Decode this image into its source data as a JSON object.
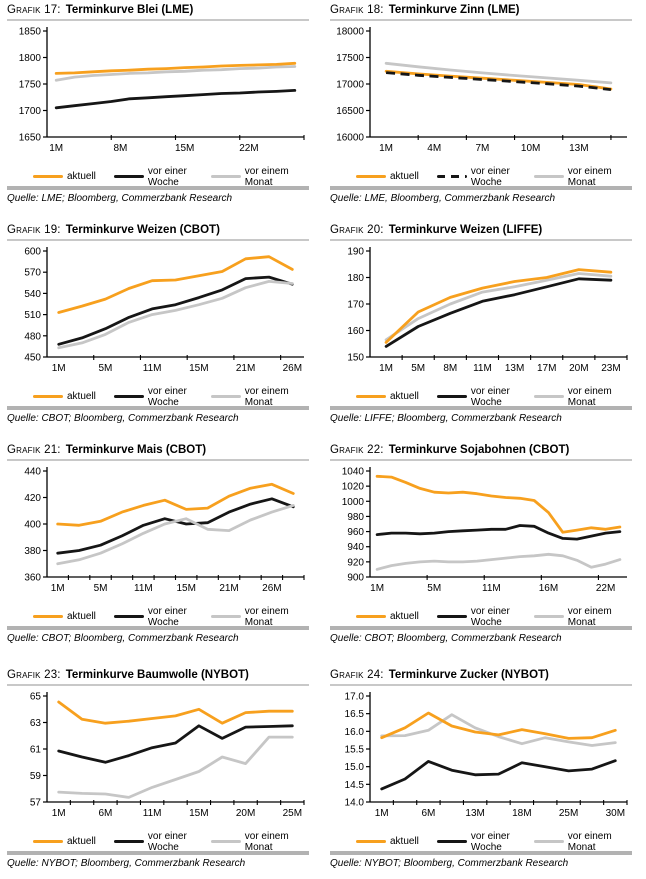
{
  "page": {
    "background": "#ffffff"
  },
  "colors": {
    "aktuell": "#F7A01E",
    "woche": "#161616",
    "monat": "#C6C6C6",
    "axis": "#000000"
  },
  "legend": {
    "aktuell": "aktuell",
    "woche": "vor einer Woche",
    "monat": "vor einem Monat"
  },
  "chart_data": [
    {
      "id": 17,
      "label": "Grafik 17:",
      "title": "Terminkurve Blei (LME)",
      "type": "line",
      "source": "Quelle: LME; Bloomberg, Commerzbank Research",
      "ylim": [
        1650,
        1850
      ],
      "y_ticks": [
        "1650",
        "1700",
        "1750",
        "1800",
        "1850"
      ],
      "n": 14,
      "tick_interval": 3.5,
      "x_labels": [
        {
          "idx": 0,
          "text": "1M"
        },
        {
          "idx": 3.5,
          "text": "8M"
        },
        {
          "idx": 7,
          "text": "15M"
        },
        {
          "idx": 10.5,
          "text": "22M"
        }
      ],
      "draw_order": [
        "monat",
        "woche",
        "aktuell"
      ],
      "series": [
        {
          "key": "aktuell",
          "dash": false,
          "values": [
            1770,
            1771,
            1773,
            1775,
            1776,
            1778,
            1779,
            1781,
            1782,
            1784,
            1785,
            1786,
            1787,
            1789
          ]
        },
        {
          "key": "woche",
          "dash": false,
          "values": [
            1705,
            1709,
            1713,
            1717,
            1722,
            1724,
            1726,
            1728,
            1730,
            1732,
            1733,
            1735,
            1736,
            1738
          ]
        },
        {
          "key": "monat",
          "dash": false,
          "values": [
            1757,
            1763,
            1766,
            1768,
            1770,
            1771,
            1773,
            1774,
            1776,
            1777,
            1779,
            1780,
            1782,
            1783
          ]
        }
      ]
    },
    {
      "id": 18,
      "label": "Grafik 18:",
      "title": "Terminkurve Zinn (LME)",
      "type": "line",
      "source": "Quelle: LME, Bloomberg, Commerzbank Research",
      "ylim": [
        16000,
        18000
      ],
      "y_ticks": [
        "16000",
        "16500",
        "17000",
        "17500",
        "18000"
      ],
      "n": 8,
      "tick_interval": 1.5,
      "x_labels": [
        {
          "idx": 0,
          "text": "1M"
        },
        {
          "idx": 1.5,
          "text": "4M"
        },
        {
          "idx": 3,
          "text": "7M"
        },
        {
          "idx": 4.5,
          "text": "10M"
        },
        {
          "idx": 6,
          "text": "13M"
        }
      ],
      "draw_order": [
        "monat",
        "aktuell",
        "woche"
      ],
      "series": [
        {
          "key": "aktuell",
          "dash": false,
          "values": [
            17240,
            17190,
            17150,
            17110,
            17070,
            17030,
            16990,
            16905
          ]
        },
        {
          "key": "woche",
          "dash": true,
          "values": [
            17215,
            17165,
            17125,
            17085,
            17045,
            17005,
            16960,
            16895
          ]
        },
        {
          "key": "monat",
          "dash": false,
          "values": [
            17390,
            17325,
            17265,
            17210,
            17160,
            17115,
            17070,
            17020
          ]
        }
      ]
    },
    {
      "id": 19,
      "label": "Grafik 19:",
      "title": "Terminkurve Weizen (CBOT)",
      "type": "line",
      "source": "Quelle: CBOT; Bloomberg, Commerzbank Research",
      "ylim": [
        450,
        600
      ],
      "y_ticks": [
        "450",
        "480",
        "510",
        "540",
        "570",
        "600"
      ],
      "n": 11,
      "tick_interval": 2,
      "x_labels": [
        {
          "idx": 0,
          "text": "1M"
        },
        {
          "idx": 2,
          "text": "5M"
        },
        {
          "idx": 4,
          "text": "11M"
        },
        {
          "idx": 6,
          "text": "15M"
        },
        {
          "idx": 8,
          "text": "21M"
        },
        {
          "idx": 10,
          "text": "26M"
        }
      ],
      "draw_order": [
        "woche",
        "monat",
        "aktuell"
      ],
      "series": [
        {
          "key": "aktuell",
          "dash": false,
          "values": [
            513,
            522,
            532,
            547,
            558,
            559,
            565,
            571,
            589,
            592,
            574
          ]
        },
        {
          "key": "woche",
          "dash": false,
          "values": [
            468,
            477,
            490,
            506,
            518,
            524,
            534,
            545,
            561,
            563,
            553
          ]
        },
        {
          "key": "monat",
          "dash": false,
          "values": [
            463,
            470,
            482,
            499,
            510,
            516,
            524,
            533,
            548,
            557,
            554
          ]
        }
      ]
    },
    {
      "id": 20,
      "label": "Grafik 20:",
      "title": "Terminkurve Weizen (LIFFE)",
      "type": "line",
      "source": "Quelle: LIFFE; Bloomberg, Commerzbank Research",
      "ylim": [
        150,
        190
      ],
      "y_ticks": [
        "150",
        "160",
        "170",
        "180",
        "190"
      ],
      "n": 8,
      "tick_interval": 1,
      "x_labels": [
        {
          "idx": 0,
          "text": "1M"
        },
        {
          "idx": 1,
          "text": "5M"
        },
        {
          "idx": 2,
          "text": "8M"
        },
        {
          "idx": 3,
          "text": "11M"
        },
        {
          "idx": 4,
          "text": "13M"
        },
        {
          "idx": 5,
          "text": "17M"
        },
        {
          "idx": 6,
          "text": "20M"
        },
        {
          "idx": 7,
          "text": "23M"
        }
      ],
      "draw_order": [
        "monat",
        "woche",
        "aktuell"
      ],
      "series": [
        {
          "key": "aktuell",
          "dash": false,
          "values": [
            155.5,
            167,
            172.5,
            176,
            178.5,
            180,
            183,
            182
          ]
        },
        {
          "key": "woche",
          "dash": false,
          "values": [
            154,
            161.5,
            166.5,
            171,
            173.5,
            176.5,
            179.5,
            179
          ]
        },
        {
          "key": "monat",
          "dash": false,
          "values": [
            156.5,
            164.5,
            170,
            174.5,
            176.5,
            179,
            181.5,
            180.5
          ]
        }
      ]
    },
    {
      "id": 21,
      "label": "Grafik 21:",
      "title": "Terminkurve Mais (CBOT)",
      "type": "line",
      "source": "Quelle: CBOT; Bloomberg, Commerzbank Research",
      "ylim": [
        360,
        440
      ],
      "y_ticks": [
        "360",
        "380",
        "400",
        "420",
        "440"
      ],
      "n": 12,
      "tick_interval": 1,
      "x_labels": [
        {
          "idx": 0,
          "text": "1M"
        },
        {
          "idx": 2,
          "text": "5M"
        },
        {
          "idx": 4,
          "text": "11M"
        },
        {
          "idx": 6,
          "text": "15M"
        },
        {
          "idx": 8,
          "text": "21M"
        },
        {
          "idx": 10,
          "text": "26M"
        }
      ],
      "draw_order": [
        "woche",
        "monat",
        "aktuell"
      ],
      "series": [
        {
          "key": "aktuell",
          "dash": false,
          "values": [
            400,
            399,
            402,
            409,
            414,
            418,
            411,
            412,
            421,
            427,
            430,
            423
          ]
        },
        {
          "key": "woche",
          "dash": false,
          "values": [
            378,
            380,
            384,
            391,
            399,
            404,
            400,
            401,
            409,
            415,
            419,
            413
          ]
        },
        {
          "key": "monat",
          "dash": false,
          "values": [
            370,
            373,
            378,
            385,
            393,
            400,
            404,
            396,
            395,
            403,
            409,
            414
          ]
        }
      ]
    },
    {
      "id": 22,
      "label": "Grafik 22:",
      "title": "Terminkurve Sojabohnen (CBOT)",
      "type": "line",
      "source": "Quelle: CBOT; Bloomberg, Commerzbank Research",
      "ylim": [
        900,
        1040
      ],
      "y_ticks": [
        "900",
        "920",
        "940",
        "960",
        "980",
        "1000",
        "1020",
        "1040"
      ],
      "n": 18,
      "tick_interval": 4,
      "x_labels": [
        {
          "idx": 0,
          "text": "1M"
        },
        {
          "idx": 4,
          "text": "5M"
        },
        {
          "idx": 8,
          "text": "11M"
        },
        {
          "idx": 12,
          "text": "16M"
        },
        {
          "idx": 16,
          "text": "22M"
        }
      ],
      "draw_order": [
        "monat",
        "woche",
        "aktuell"
      ],
      "series": [
        {
          "key": "aktuell",
          "dash": false,
          "values": [
            1033,
            1032,
            1025,
            1017,
            1012,
            1011,
            1012,
            1010,
            1007,
            1005,
            1004,
            1001,
            985,
            959,
            962,
            965,
            963,
            966
          ]
        },
        {
          "key": "woche",
          "dash": false,
          "values": [
            956,
            958,
            958,
            957,
            958,
            960,
            961,
            962,
            963,
            963,
            968,
            967,
            958,
            951,
            950,
            954,
            958,
            960
          ]
        },
        {
          "key": "monat",
          "dash": false,
          "values": [
            910,
            915,
            918,
            920,
            921,
            920,
            920,
            921,
            923,
            925,
            927,
            928,
            930,
            928,
            922,
            913,
            917,
            923
          ]
        }
      ]
    },
    {
      "id": 23,
      "label": "Grafik 23:",
      "title": "Terminkurve Baumwolle (NYBOT)",
      "type": "line",
      "source": "Quelle: NYBOT; Bloomberg, Commerzbank Research",
      "ylim": [
        57,
        65
      ],
      "y_ticks": [
        "57",
        "59",
        "61",
        "63",
        "65"
      ],
      "n": 11,
      "tick_interval": 1,
      "x_labels": [
        {
          "idx": 0,
          "text": "1M"
        },
        {
          "idx": 2,
          "text": "6M"
        },
        {
          "idx": 4,
          "text": "11M"
        },
        {
          "idx": 6,
          "text": "15M"
        },
        {
          "idx": 8,
          "text": "20M"
        },
        {
          "idx": 10,
          "text": "25M"
        }
      ],
      "draw_order": [
        "monat",
        "woche",
        "aktuell"
      ],
      "series": [
        {
          "key": "aktuell",
          "dash": false,
          "values": [
            64.55,
            63.25,
            62.95,
            63.1,
            63.3,
            63.5,
            64.0,
            62.95,
            63.75,
            63.85,
            63.85
          ]
        },
        {
          "key": "woche",
          "dash": false,
          "values": [
            60.85,
            60.4,
            60.0,
            60.5,
            61.1,
            61.45,
            62.75,
            61.8,
            62.65,
            62.7,
            62.75
          ]
        },
        {
          "key": "monat",
          "dash": false,
          "values": [
            57.75,
            57.65,
            57.6,
            57.35,
            58.1,
            58.7,
            59.3,
            60.4,
            59.9,
            61.9,
            61.9
          ]
        }
      ]
    },
    {
      "id": 24,
      "label": "Grafik 24:",
      "title": "Terminkurve Zucker (NYBOT)",
      "type": "line",
      "source": "Quelle: NYBOT; Bloomberg, Commerzbank Research",
      "ylim": [
        14.0,
        17.0
      ],
      "y_ticks": [
        "14.0",
        "14.5",
        "15.0",
        "15.5",
        "16.0",
        "16.5",
        "17.0"
      ],
      "n": 11,
      "tick_interval": 1,
      "x_labels": [
        {
          "idx": 0,
          "text": "1M"
        },
        {
          "idx": 2,
          "text": "6M"
        },
        {
          "idx": 4,
          "text": "13M"
        },
        {
          "idx": 6,
          "text": "18M"
        },
        {
          "idx": 8,
          "text": "25M"
        },
        {
          "idx": 10,
          "text": "30M"
        }
      ],
      "draw_order": [
        "monat",
        "woche",
        "aktuell"
      ],
      "series": [
        {
          "key": "aktuell",
          "dash": false,
          "values": [
            15.82,
            16.1,
            16.52,
            16.15,
            15.98,
            15.9,
            16.05,
            15.93,
            15.8,
            15.82,
            16.03
          ]
        },
        {
          "key": "woche",
          "dash": false,
          "values": [
            14.37,
            14.65,
            15.15,
            14.9,
            14.77,
            14.79,
            15.11,
            15.0,
            14.88,
            14.93,
            15.17
          ]
        },
        {
          "key": "monat",
          "dash": false,
          "values": [
            15.87,
            15.88,
            16.03,
            16.47,
            16.1,
            15.85,
            15.65,
            15.82,
            15.7,
            15.6,
            15.68
          ]
        }
      ]
    }
  ]
}
